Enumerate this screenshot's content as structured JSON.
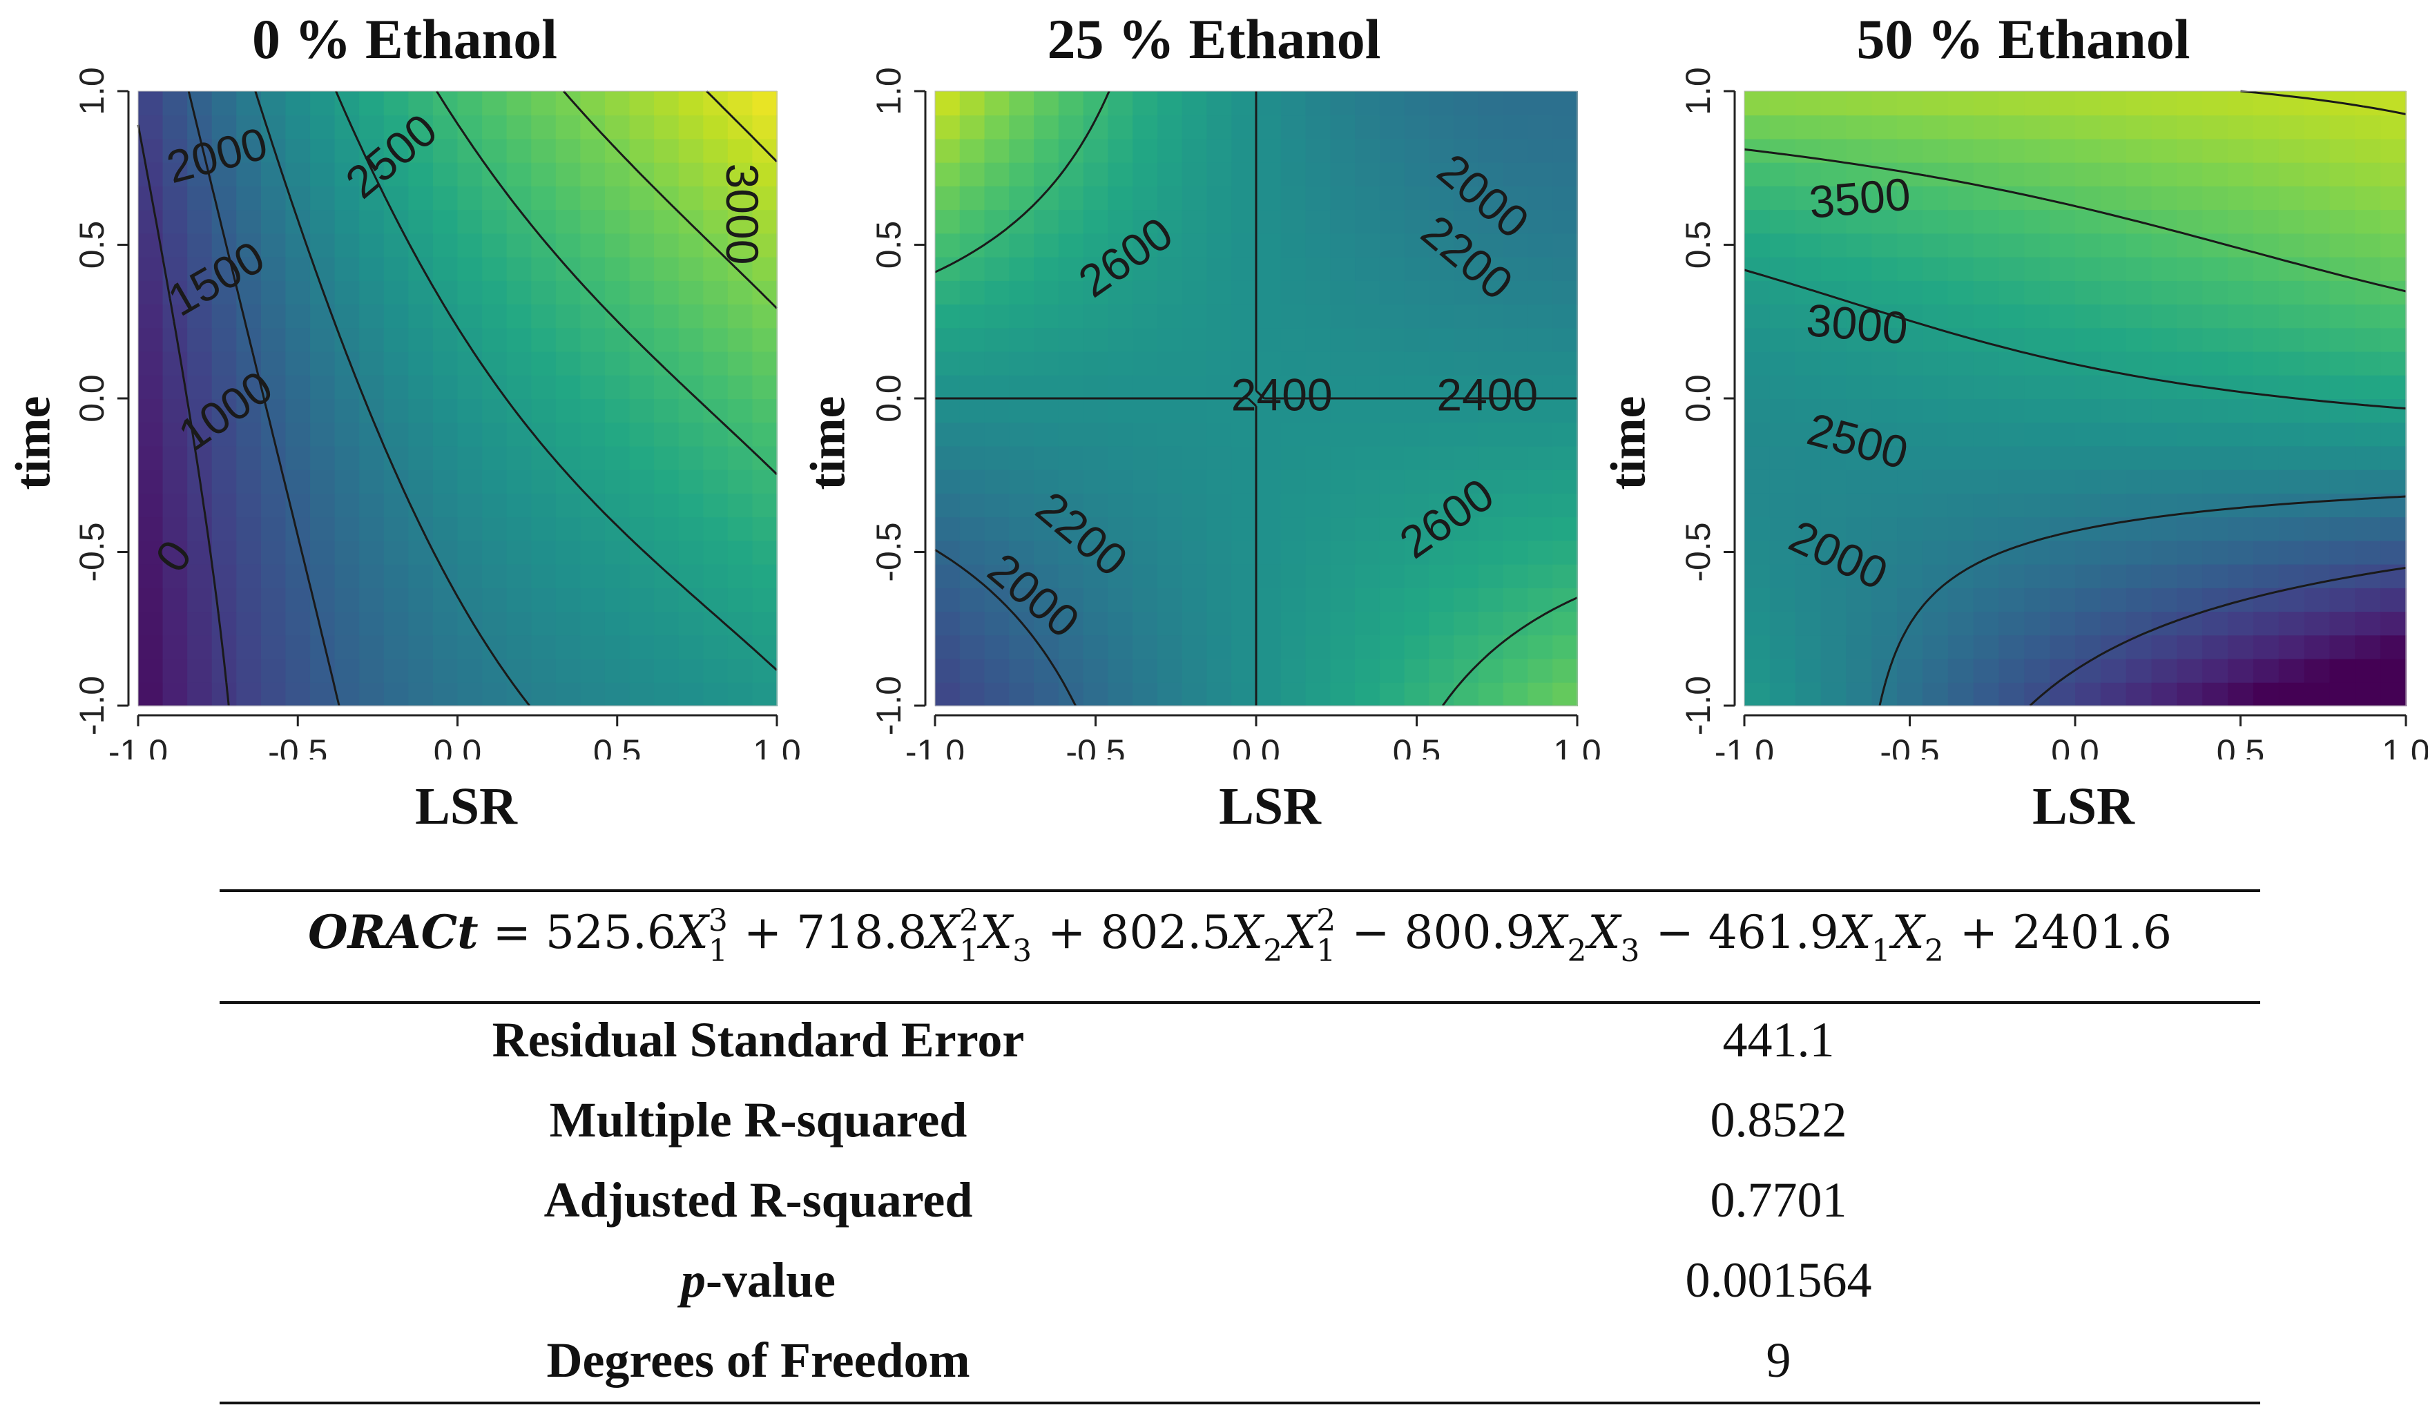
{
  "chart_data": [
    {
      "type": "heatmap",
      "title": "0 % Ethanol",
      "xlabel": "LSR",
      "ylabel": "time",
      "xlim": [
        -1.0,
        1.0
      ],
      "ylim": [
        -1.0,
        1.0
      ],
      "xticks": [
        "-1.0",
        "-0.5",
        "0.0",
        "0.5",
        "1.0"
      ],
      "yticks": [
        "-1.0",
        "-0.5",
        "0.0",
        "0.5",
        "1.0"
      ],
      "levels": [
        0,
        500,
        1000,
        1500,
        2000,
        2500,
        3000
      ],
      "contour_labels": [
        "0",
        "1000",
        "1500",
        "2000",
        "2500",
        "3000"
      ],
      "value_range": [
        -700,
        3300
      ],
      "colormap": "viridis"
    },
    {
      "type": "heatmap",
      "title": "25 % Ethanol",
      "xlabel": "LSR",
      "ylabel": "time",
      "xlim": [
        -1.0,
        1.0
      ],
      "ylim": [
        -1.0,
        1.0
      ],
      "xticks": [
        "-1.0",
        "-0.5",
        "0.0",
        "0.5",
        "1.0"
      ],
      "yticks": [
        "-1.0",
        "-0.5",
        "0.0",
        "0.5",
        "1.0"
      ],
      "levels": [
        2000,
        2200,
        2400,
        2600
      ],
      "contour_labels": [
        "2000",
        "2200",
        "2400",
        "2600",
        "2000",
        "2200",
        "2400",
        "2600"
      ],
      "value_range": [
        1800,
        3000
      ],
      "colormap": "viridis"
    },
    {
      "type": "heatmap",
      "title": "50 % Ethanol",
      "xlabel": "LSR",
      "ylabel": "time",
      "xlim": [
        -1.0,
        1.0
      ],
      "ylim": [
        -1.0,
        1.0
      ],
      "xticks": [
        "-1.0",
        "-0.5",
        "0.0",
        "0.5",
        "1.0"
      ],
      "yticks": [
        "-1.0",
        "-0.5",
        "0.0",
        "0.5",
        "1.0"
      ],
      "levels": [
        2000,
        2500,
        3000,
        3500,
        4000
      ],
      "contour_labels": [
        "2000",
        "2500",
        "3000",
        "3500"
      ],
      "value_range": [
        1300,
        4300
      ],
      "colormap": "viridis"
    }
  ],
  "equation": {
    "lhs": "ORACt",
    "terms": [
      {
        "sign": "=",
        "coef": "525.6",
        "vars": [
          [
            "X",
            "1",
            "3"
          ]
        ]
      },
      {
        "sign": "+",
        "coef": "718.8",
        "vars": [
          [
            "X",
            "1",
            "2"
          ],
          [
            "X",
            "3",
            ""
          ]
        ]
      },
      {
        "sign": "+",
        "coef": "802.5",
        "vars": [
          [
            "X",
            "2",
            ""
          ],
          [
            "X",
            "1",
            "2"
          ]
        ]
      },
      {
        "sign": "−",
        "coef": "800.9",
        "vars": [
          [
            "X",
            "2",
            ""
          ],
          [
            "X",
            "3",
            ""
          ]
        ]
      },
      {
        "sign": "−",
        "coef": "461.9",
        "vars": [
          [
            "X",
            "1",
            ""
          ],
          [
            "X",
            "2",
            ""
          ]
        ]
      },
      {
        "sign": "+",
        "coef": "2401.6",
        "vars": []
      }
    ]
  },
  "stats": [
    {
      "label": "Residual Standard Error",
      "value": "441.1"
    },
    {
      "label": "Multiple R-squared",
      "value": "0.8522"
    },
    {
      "label": "Adjusted R-squared",
      "value": "0.7701"
    },
    {
      "label_italic": "p",
      "label": "-value",
      "value": "0.001564"
    },
    {
      "label": "Degrees of Freedom",
      "value": "9"
    }
  ]
}
